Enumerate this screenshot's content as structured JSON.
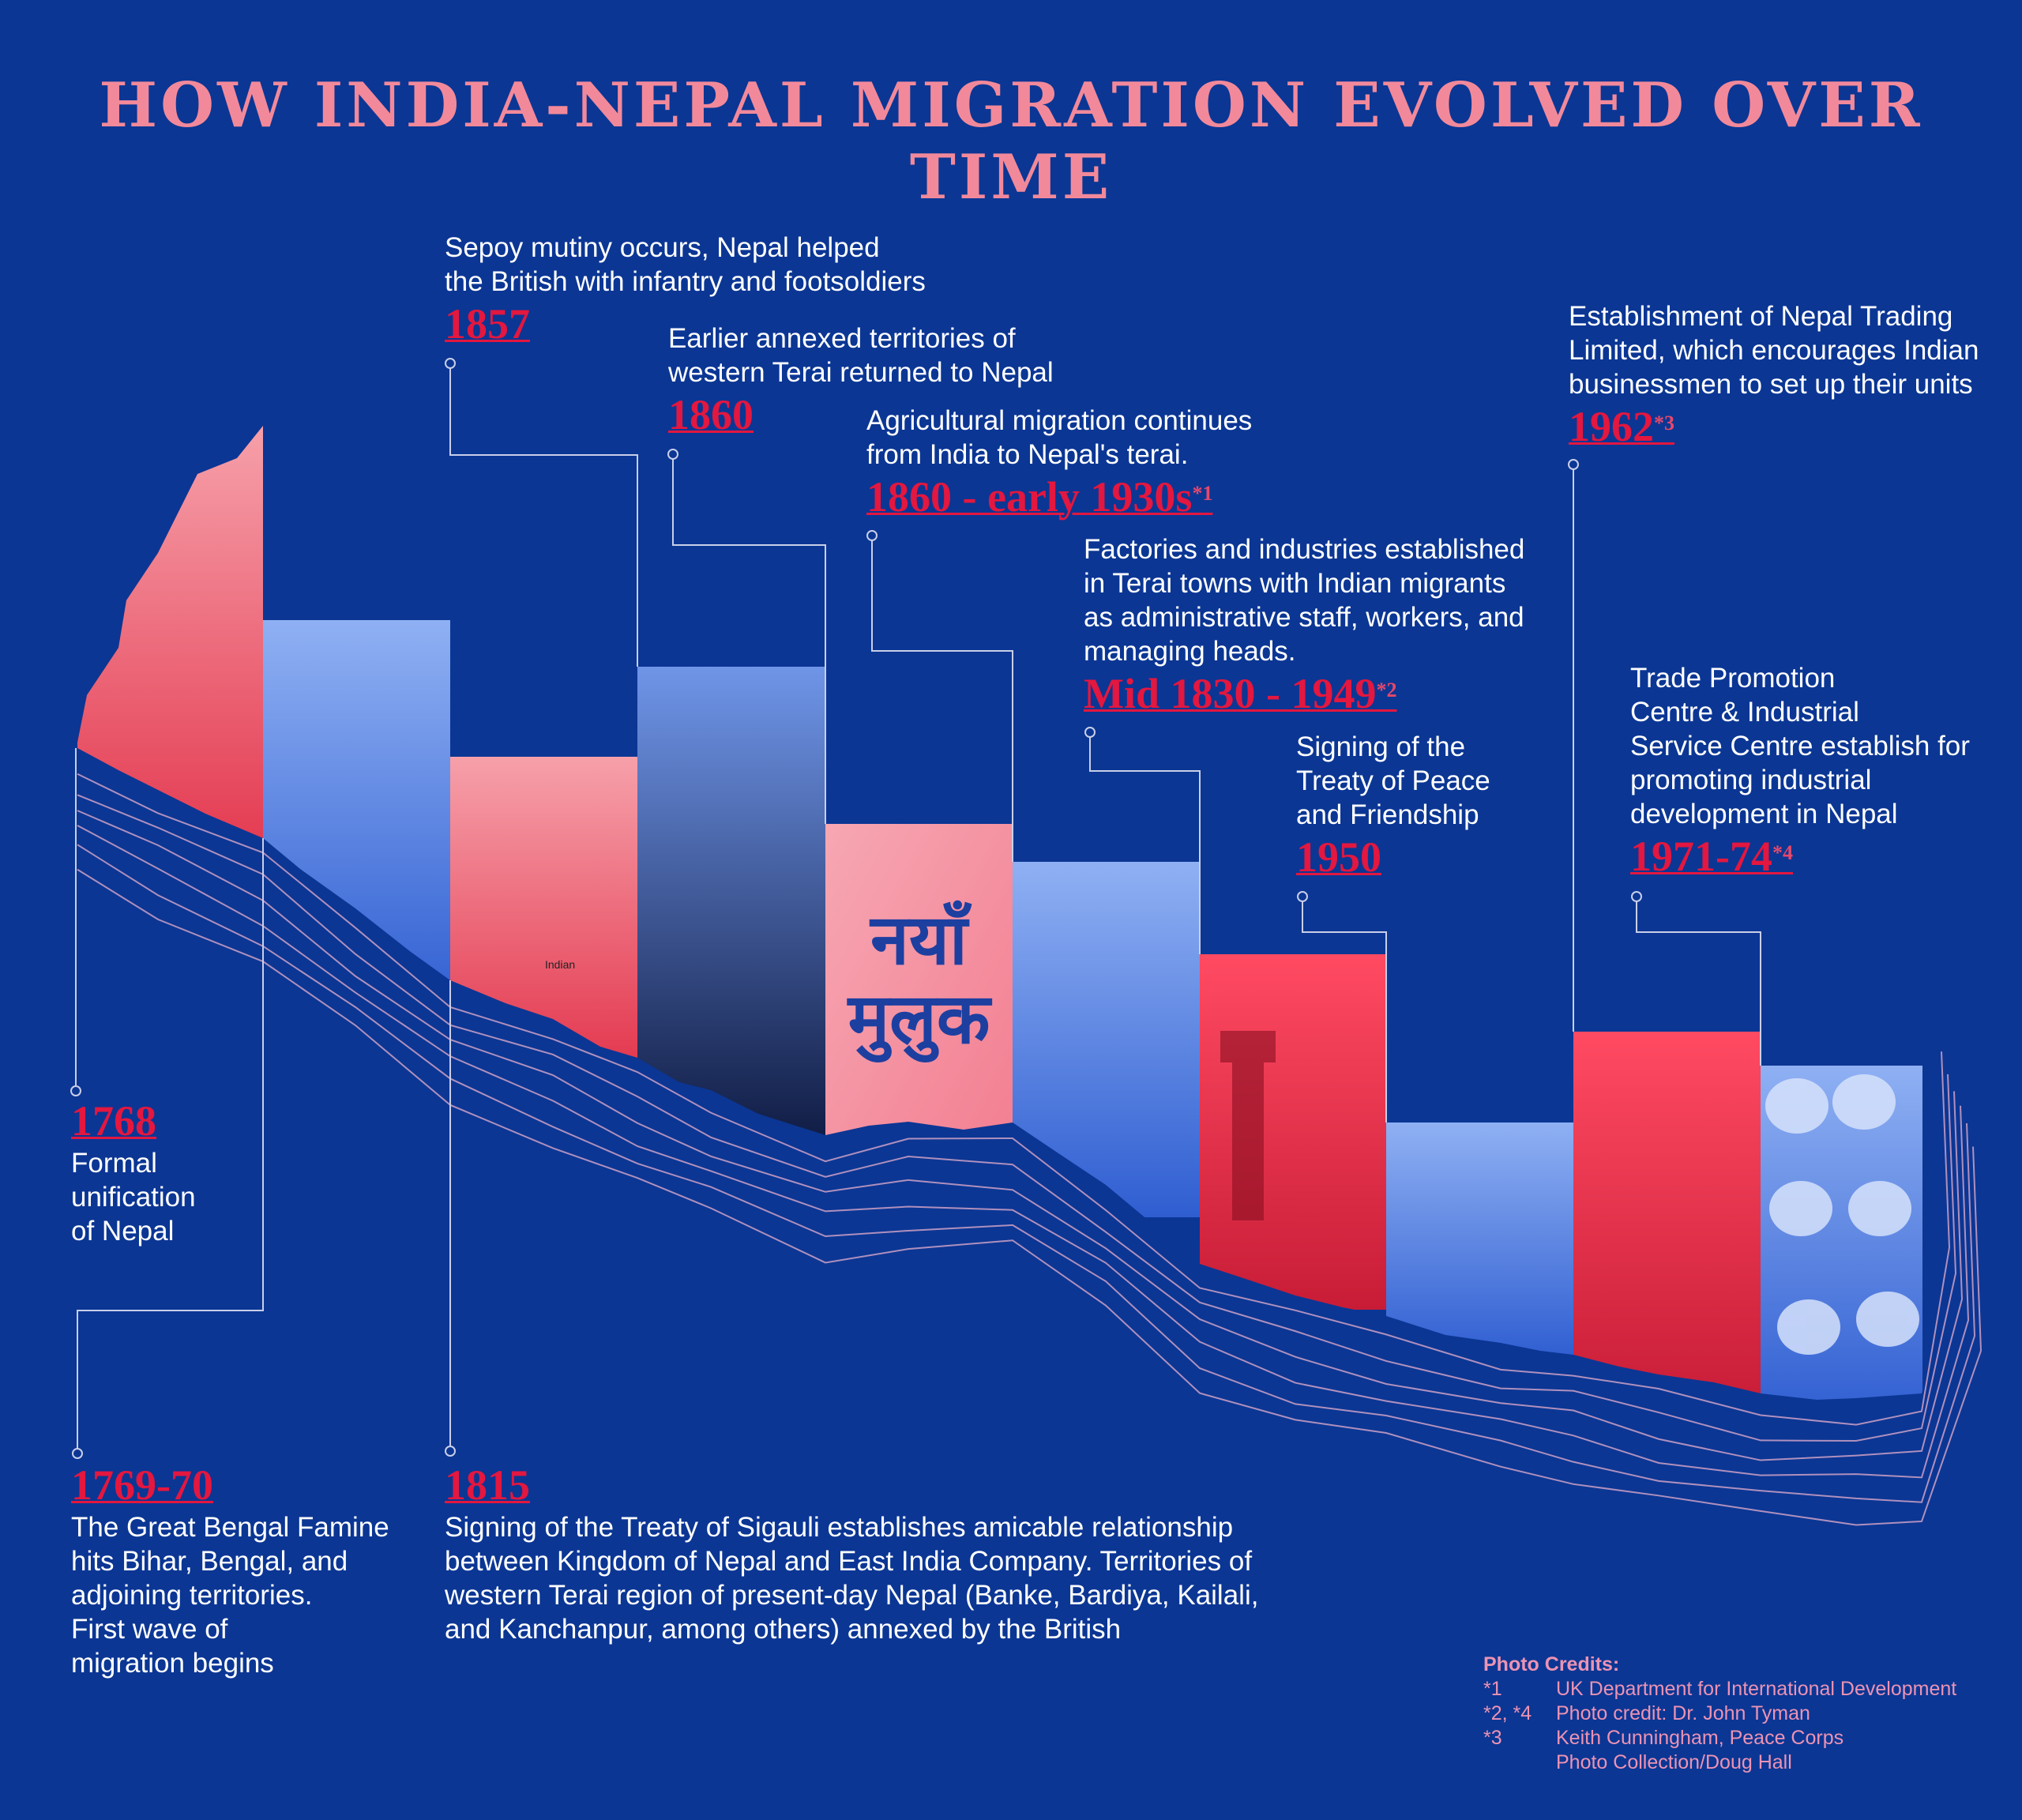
{
  "title": "HOW INDIA-NEPAL MIGRATION EVOLVED OVER TIME",
  "colors": {
    "background": "#0b3694",
    "title": "#f2899a",
    "year": "#e3173f",
    "text": "#ffffff",
    "credits": "#ec93b3"
  },
  "events": {
    "e1768": {
      "year": "1768",
      "text": "Formal\nunification\nof Nepal"
    },
    "e1769": {
      "year": "1769-70",
      "text": "The Great Bengal Famine\nhits Bihar, Bengal, and\nadjoining territories.\nFirst wave of\nmigration begins"
    },
    "e1815": {
      "year": "1815",
      "text": "Signing of the Treaty of Sigauli establishes amicable relationship\nbetween Kingdom of Nepal and East India Company. Territories of\nwestern Terai region of present-day Nepal (Banke, Bardiya, Kailali,\nand Kanchanpur, among others) annexed by the British"
    },
    "e1857": {
      "year": "1857",
      "text": "Sepoy mutiny occurs, Nepal helped\nthe British with infantry and footsoldiers"
    },
    "e1860": {
      "year": "1860",
      "text": "Earlier annexed territories of\nwestern Terai returned to Nepal"
    },
    "e1860b": {
      "year": "1860 - early 1930s",
      "note": "*1",
      "text": "Agricultural migration continues\nfrom India to Nepal's terai."
    },
    "e1830": {
      "year": "Mid 1830 - 1949",
      "note": "*2",
      "text": "Factories and industries established\nin Terai towns with Indian migrants\nas administrative staff, workers, and\nmanaging heads."
    },
    "e1950": {
      "year": "1950",
      "text": "Signing of the\nTreaty of Peace\nand Friendship"
    },
    "e1962": {
      "year": "1962",
      "note": "*3",
      "text": "Establishment of Nepal Trading\nLimited, which encourages Indian\nbusinessmen to set up their units"
    },
    "e1971": {
      "year": "1971-74",
      "note": "*4",
      "text": "Trade Promotion\nCentre & Industrial\nService Centre establish for\npromoting industrial\ndevelopment in Nepal"
    }
  },
  "photo_text": {
    "hindi": "नयाँ मुलुक",
    "caption": "Indian"
  },
  "credits": {
    "heading": "Photo Credits:",
    "rows": [
      {
        "key": "*1",
        "value": "UK Department for International Development"
      },
      {
        "key": "*2, *4",
        "value": "Photo credit: Dr. John Tyman"
      },
      {
        "key": "*3",
        "value": "Keith Cunningham, Peace Corps"
      },
      {
        "key": "",
        "value": "Photo Collection/Doug Hall"
      }
    ]
  }
}
